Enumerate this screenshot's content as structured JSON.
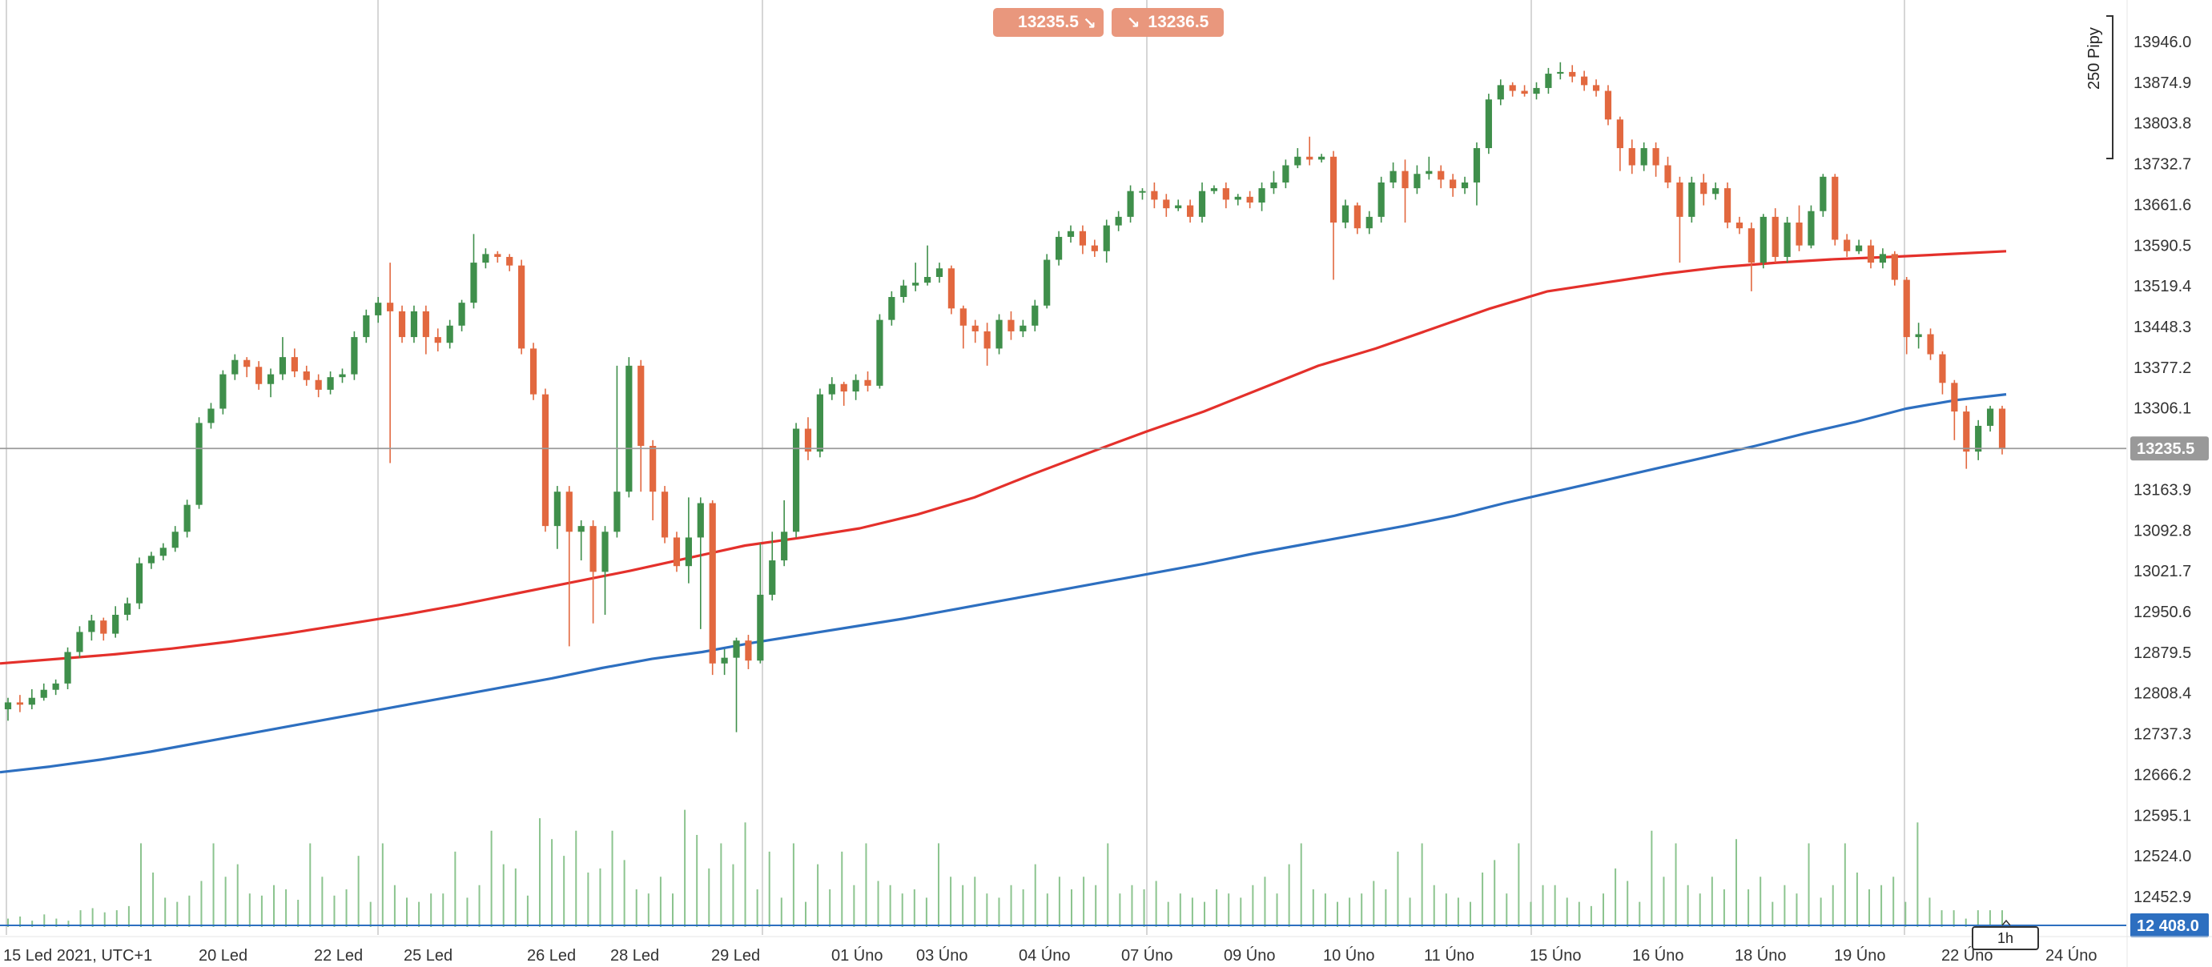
{
  "quote": {
    "bid": "13235.5",
    "ask": "13236.5",
    "bid_icon": "sell-arrow-icon",
    "ask_icon": "buy-arrow-icon"
  },
  "pip_ruler": {
    "label": "250 Pipy"
  },
  "timeframe": {
    "label": "1h"
  },
  "colors": {
    "bull": "#3f8f4b",
    "bear": "#e2683f",
    "ma_red": "#e4302b",
    "ma_blue": "#2d6fc0",
    "volume": "#8cc48f",
    "grid": "#c8c8c8",
    "price_line": "#9a9a9a",
    "price_box": "#999999",
    "volume_line_box": "#2d6fc0"
  },
  "chart_data": {
    "type": "candlestick",
    "title": "",
    "xlabel": "",
    "ylabel": "",
    "ylim": [
      12395,
      13990
    ],
    "grid": true,
    "y_ticks": [
      "13946.0",
      "13874.9",
      "13803.8",
      "13732.7",
      "13661.6",
      "13590.5",
      "13519.4",
      "13448.3",
      "13377.2",
      "13306.1",
      "13235.5",
      "13163.9",
      "13092.8",
      "13021.7",
      "12950.6",
      "12879.5",
      "12808.4",
      "12737.3",
      "12666.2",
      "12595.1",
      "12524.0",
      "12452.9",
      "12 408.0"
    ],
    "x_labels": [
      "15 Led 2021, UTC+1",
      "20 Led",
      "22 Led",
      "25 Led",
      "26 Led",
      "28 Led",
      "29 Led",
      "01 Úno",
      "03 Úno",
      "04 Úno",
      "07 Úno",
      "09 Úno",
      "10 Úno",
      "11 Úno",
      "15 Úno",
      "16 Úno",
      "18 Úno",
      "19 Úno",
      "22 Úno",
      "24 Úno"
    ],
    "current_price": 13235.5,
    "current_price_label": "13235.5",
    "volume_line_value": 12408.0,
    "volume_line_label": "12 408.0",
    "candles": [
      [
        12780,
        12792,
        12760,
        12800
      ],
      [
        12792,
        12788,
        12775,
        12805
      ],
      [
        12788,
        12800,
        12780,
        12815
      ],
      [
        12800,
        12814,
        12795,
        12825
      ],
      [
        12814,
        12825,
        12805,
        12832
      ],
      [
        12825,
        12880,
        12815,
        12888
      ],
      [
        12880,
        12915,
        12870,
        12925
      ],
      [
        12915,
        12935,
        12900,
        12945
      ],
      [
        12935,
        12912,
        12900,
        12940
      ],
      [
        12912,
        12945,
        12905,
        12960
      ],
      [
        12945,
        12965,
        12935,
        12975
      ],
      [
        12965,
        13035,
        12955,
        13045
      ],
      [
        13035,
        13048,
        13025,
        13055
      ],
      [
        13048,
        13062,
        13040,
        13070
      ],
      [
        13062,
        13090,
        13055,
        13100
      ],
      [
        13090,
        13137,
        13080,
        13146
      ],
      [
        13137,
        13280,
        13130,
        13290
      ],
      [
        13280,
        13305,
        13270,
        13315
      ],
      [
        13305,
        13365,
        13295,
        13372
      ],
      [
        13365,
        13390,
        13355,
        13400
      ],
      [
        13390,
        13378,
        13360,
        13395
      ],
      [
        13378,
        13348,
        13338,
        13388
      ],
      [
        13348,
        13365,
        13325,
        13375
      ],
      [
        13365,
        13395,
        13355,
        13430
      ],
      [
        13395,
        13370,
        13360,
        13410
      ],
      [
        13370,
        13355,
        13345,
        13380
      ],
      [
        13355,
        13338,
        13325,
        13365
      ],
      [
        13338,
        13360,
        13330,
        13370
      ],
      [
        13360,
        13365,
        13350,
        13375
      ],
      [
        13365,
        13430,
        13355,
        13440
      ],
      [
        13430,
        13468,
        13420,
        13478
      ],
      [
        13468,
        13490,
        13455,
        13500
      ],
      [
        13490,
        13475,
        13210,
        13560
      ],
      [
        13475,
        13430,
        13420,
        13485
      ],
      [
        13430,
        13475,
        13420,
        13485
      ],
      [
        13475,
        13430,
        13400,
        13485
      ],
      [
        13430,
        13420,
        13405,
        13445
      ],
      [
        13420,
        13450,
        13410,
        13460
      ],
      [
        13450,
        13490,
        13440,
        13495
      ],
      [
        13490,
        13560,
        13480,
        13610
      ],
      [
        13560,
        13575,
        13550,
        13585
      ],
      [
        13575,
        13570,
        13560,
        13580
      ],
      [
        13570,
        13555,
        13545,
        13575
      ],
      [
        13555,
        13410,
        13400,
        13565
      ],
      [
        13410,
        13330,
        13320,
        13420
      ],
      [
        13330,
        13100,
        13090,
        13340
      ],
      [
        13100,
        13160,
        13060,
        13170
      ],
      [
        13160,
        13090,
        12890,
        13170
      ],
      [
        13090,
        13100,
        13040,
        13110
      ],
      [
        13100,
        13020,
        12930,
        13110
      ],
      [
        13020,
        13090,
        12945,
        13100
      ],
      [
        13090,
        13160,
        13080,
        13380
      ],
      [
        13160,
        13380,
        13150,
        13395
      ],
      [
        13380,
        13240,
        13160,
        13390
      ],
      [
        13240,
        13160,
        13110,
        13250
      ],
      [
        13160,
        13080,
        13070,
        13170
      ],
      [
        13080,
        13030,
        13020,
        13090
      ],
      [
        13030,
        13080,
        13000,
        13150
      ],
      [
        13080,
        13140,
        12920,
        13150
      ],
      [
        13140,
        12860,
        12840,
        13145
      ],
      [
        12860,
        12870,
        12840,
        12885
      ],
      [
        12870,
        12900,
        12740,
        12905
      ],
      [
        12900,
        12865,
        12850,
        12910
      ],
      [
        12865,
        12980,
        12860,
        13070
      ],
      [
        12980,
        13040,
        12970,
        13090
      ],
      [
        13040,
        13090,
        13030,
        13145
      ],
      [
        13090,
        13270,
        13080,
        13280
      ],
      [
        13270,
        13230,
        13215,
        13290
      ],
      [
        13230,
        13330,
        13220,
        13340
      ],
      [
        13330,
        13348,
        13320,
        13360
      ],
      [
        13348,
        13335,
        13310,
        13352
      ],
      [
        13335,
        13355,
        13320,
        13365
      ],
      [
        13355,
        13345,
        13335,
        13370
      ],
      [
        13345,
        13460,
        13340,
        13470
      ],
      [
        13460,
        13500,
        13450,
        13510
      ],
      [
        13500,
        13520,
        13490,
        13530
      ],
      [
        13520,
        13525,
        13510,
        13560
      ],
      [
        13525,
        13535,
        13520,
        13590
      ],
      [
        13535,
        13550,
        13525,
        13560
      ],
      [
        13550,
        13480,
        13470,
        13555
      ],
      [
        13480,
        13450,
        13410,
        13485
      ],
      [
        13450,
        13440,
        13420,
        13460
      ],
      [
        13440,
        13410,
        13380,
        13455
      ],
      [
        13410,
        13460,
        13400,
        13470
      ],
      [
        13460,
        13440,
        13425,
        13475
      ],
      [
        13440,
        13450,
        13430,
        13460
      ],
      [
        13450,
        13485,
        13440,
        13495
      ],
      [
        13485,
        13565,
        13480,
        13575
      ],
      [
        13565,
        13605,
        13555,
        13615
      ],
      [
        13605,
        13615,
        13595,
        13625
      ],
      [
        13615,
        13590,
        13575,
        13625
      ],
      [
        13590,
        13580,
        13570,
        13600
      ],
      [
        13580,
        13625,
        13560,
        13635
      ],
      [
        13625,
        13640,
        13615,
        13650
      ],
      [
        13640,
        13685,
        13630,
        13695
      ],
      [
        13685,
        13685,
        13670,
        13690
      ],
      [
        13685,
        13670,
        13655,
        13700
      ],
      [
        13670,
        13655,
        13640,
        13680
      ],
      [
        13655,
        13660,
        13650,
        13670
      ],
      [
        13660,
        13640,
        13630,
        13670
      ],
      [
        13640,
        13685,
        13630,
        13700
      ],
      [
        13685,
        13690,
        13680,
        13695
      ],
      [
        13690,
        13670,
        13655,
        13700
      ],
      [
        13670,
        13675,
        13660,
        13680
      ],
      [
        13675,
        13665,
        13655,
        13685
      ],
      [
        13665,
        13690,
        13650,
        13700
      ],
      [
        13690,
        13700,
        13680,
        13720
      ],
      [
        13700,
        13730,
        13690,
        13740
      ],
      [
        13730,
        13745,
        13725,
        13760
      ],
      [
        13745,
        13740,
        13730,
        13780
      ],
      [
        13740,
        13745,
        13735,
        13750
      ],
      [
        13745,
        13630,
        13530,
        13755
      ],
      [
        13630,
        13660,
        13620,
        13670
      ],
      [
        13660,
        13620,
        13610,
        13665
      ],
      [
        13620,
        13640,
        13610,
        13650
      ],
      [
        13640,
        13700,
        13630,
        13710
      ],
      [
        13700,
        13720,
        13690,
        13735
      ],
      [
        13720,
        13690,
        13630,
        13740
      ],
      [
        13690,
        13715,
        13680,
        13730
      ],
      [
        13715,
        13720,
        13705,
        13745
      ],
      [
        13720,
        13705,
        13690,
        13730
      ],
      [
        13705,
        13690,
        13675,
        13715
      ],
      [
        13690,
        13700,
        13680,
        13710
      ],
      [
        13700,
        13760,
        13660,
        13770
      ],
      [
        13760,
        13845,
        13750,
        13855
      ],
      [
        13845,
        13870,
        13835,
        13880
      ],
      [
        13870,
        13860,
        13850,
        13875
      ],
      [
        13860,
        13855,
        13850,
        13870
      ],
      [
        13855,
        13865,
        13845,
        13875
      ],
      [
        13865,
        13890,
        13855,
        13900
      ],
      [
        13890,
        13893,
        13880,
        13910
      ],
      [
        13893,
        13885,
        13875,
        13905
      ],
      [
        13885,
        13870,
        13860,
        13895
      ],
      [
        13870,
        13860,
        13850,
        13880
      ],
      [
        13860,
        13810,
        13800,
        13870
      ],
      [
        13810,
        13760,
        13720,
        13815
      ],
      [
        13760,
        13730,
        13715,
        13775
      ],
      [
        13730,
        13760,
        13720,
        13770
      ],
      [
        13760,
        13730,
        13710,
        13770
      ],
      [
        13730,
        13700,
        13690,
        13745
      ],
      [
        13700,
        13640,
        13560,
        13710
      ],
      [
        13640,
        13700,
        13630,
        13710
      ],
      [
        13700,
        13680,
        13660,
        13715
      ],
      [
        13680,
        13690,
        13670,
        13700
      ],
      [
        13690,
        13630,
        13620,
        13700
      ],
      [
        13630,
        13620,
        13610,
        13640
      ],
      [
        13620,
        13560,
        13510,
        13630
      ],
      [
        13560,
        13640,
        13550,
        13645
      ],
      [
        13640,
        13570,
        13560,
        13655
      ],
      [
        13570,
        13630,
        13560,
        13640
      ],
      [
        13630,
        13590,
        13580,
        13660
      ],
      [
        13590,
        13650,
        13585,
        13660
      ],
      [
        13650,
        13710,
        13640,
        13715
      ],
      [
        13710,
        13600,
        13590,
        13715
      ],
      [
        13600,
        13580,
        13570,
        13610
      ],
      [
        13580,
        13590,
        13575,
        13600
      ],
      [
        13590,
        13560,
        13550,
        13600
      ],
      [
        13560,
        13575,
        13550,
        13585
      ],
      [
        13575,
        13530,
        13520,
        13580
      ],
      [
        13530,
        13430,
        13400,
        13535
      ],
      [
        13430,
        13435,
        13410,
        13455
      ],
      [
        13435,
        13400,
        13390,
        13445
      ],
      [
        13400,
        13350,
        13330,
        13405
      ],
      [
        13350,
        13300,
        13250,
        13355
      ],
      [
        13300,
        13230,
        13200,
        13310
      ],
      [
        13230,
        13275,
        13215,
        13285
      ],
      [
        13275,
        13305,
        13265,
        13310
      ],
      [
        13305,
        13235,
        13225,
        13310
      ]
    ],
    "series": [
      {
        "type": "line",
        "values": [
          12860,
          12868,
          12876,
          12886,
          12898,
          12912,
          12928,
          12944,
          12962,
          12982,
          13002,
          13022,
          13044,
          13066,
          13080,
          13096,
          13120,
          13150,
          13190,
          13228,
          13265,
          13300,
          13340,
          13380,
          13410,
          13445,
          13480,
          13510,
          13525,
          13540,
          13552,
          13560,
          13566,
          13570,
          13575,
          13580
        ]
      },
      {
        "type": "line",
        "values": [
          12670,
          12680,
          12692,
          12706,
          12722,
          12738,
          12754,
          12770,
          12786,
          12802,
          12818,
          12834,
          12852,
          12868,
          12880,
          12896,
          12910,
          12924,
          12938,
          12954,
          12970,
          12986,
          13002,
          13018,
          13034,
          13052,
          13068,
          13084,
          13100,
          13118,
          13140,
          13160,
          13180,
          13200,
          13220,
          13240,
          13262,
          13282,
          13305,
          13320,
          13330
        ]
      }
    ],
    "volume": {
      "max": 440,
      "values": [
        20,
        25,
        15,
        30,
        20,
        15,
        40,
        45,
        35,
        40,
        50,
        200,
        130,
        70,
        60,
        75,
        110,
        200,
        120,
        150,
        80,
        75,
        100,
        90,
        65,
        200,
        120,
        75,
        90,
        170,
        60,
        200,
        100,
        70,
        60,
        80,
        80,
        180,
        70,
        100,
        230,
        150,
        140,
        75,
        260,
        210,
        170,
        230,
        130,
        140,
        230,
        160,
        90,
        80,
        120,
        80,
        280,
        220,
        140,
        200,
        150,
        250,
        90,
        180,
        70,
        200,
        60,
        150,
        90,
        180,
        100,
        200,
        110,
        100,
        80,
        90,
        70,
        200,
        120,
        100,
        120,
        80,
        70,
        100,
        90,
        150,
        80,
        120,
        90,
        120,
        100,
        200,
        80,
        100,
        90,
        110,
        60,
        80,
        70,
        60,
        90,
        80,
        70,
        100,
        120,
        80,
        150,
        200,
        90,
        80,
        60,
        70,
        80,
        110,
        90,
        180,
        70,
        200,
        100,
        80,
        70,
        60,
        130,
        160,
        80,
        200,
        60,
        100,
        100,
        70,
        60,
        50,
        80,
        140,
        110,
        60,
        230,
        120,
        200,
        100,
        80,
        120,
        90,
        210,
        90,
        120,
        60,
        100,
        80,
        200,
        70,
        100,
        200,
        130,
        90,
        100,
        120,
        60,
        250,
        70,
        40,
        40,
        20,
        40,
        40,
        40
      ]
    }
  }
}
